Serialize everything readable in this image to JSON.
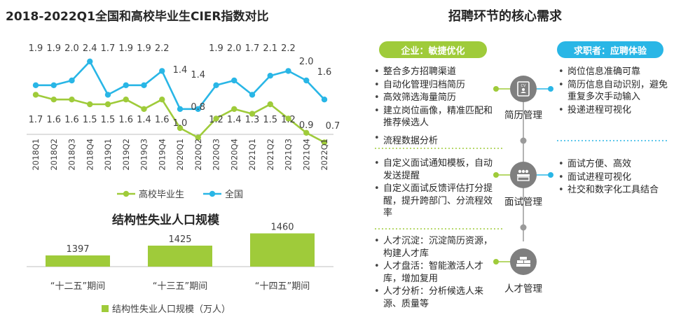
{
  "chart_data": [
    {
      "type": "line",
      "title": "2018-2022Q1全国和高校毕业生CIER指数对比",
      "categories": [
        "2018Q1",
        "2018Q2",
        "2018Q3",
        "2018Q4",
        "2019Q1",
        "2019Q2",
        "2019Q3",
        "2019Q4",
        "2020Q1",
        "2020Q2",
        "2020Q3",
        "2020Q4",
        "2021Q1",
        "2021Q2",
        "2021Q3",
        "2021Q4",
        "2022Q1"
      ],
      "series": [
        {
          "name": "全国",
          "color": "#29b6e6",
          "values": [
            1.9,
            1.9,
            2.0,
            2.4,
            1.7,
            1.9,
            1.9,
            2.2,
            1.4,
            1.4,
            1.9,
            2.0,
            1.7,
            2.1,
            2.2,
            2.0,
            1.6
          ]
        },
        {
          "name": "高校毕业生",
          "color": "#9fcb3a",
          "values": [
            1.7,
            1.6,
            1.6,
            1.5,
            1.5,
            1.6,
            1.4,
            1.6,
            1.0,
            0.8,
            1.2,
            1.4,
            1.3,
            1.5,
            1.2,
            0.9,
            0.7
          ]
        }
      ],
      "legend": "bottom",
      "grid": false
    },
    {
      "type": "bar",
      "title": "结构性失业人口规模",
      "categories": [
        "“十二五”期间",
        "“十三五”期间",
        "“十四五”期间"
      ],
      "series": [
        {
          "name": "结构性失业人口规模（万人）",
          "color": "#9fcb3a",
          "values": [
            1397,
            1425,
            1460
          ]
        }
      ],
      "legend": "bottom",
      "grid": false
    }
  ],
  "right": {
    "title": "招聘环节的核心需求",
    "pill_enterprise": "企业：敏捷优化",
    "pill_seeker": "求职者：应聘体验",
    "colors": {
      "enterprise": "#9fcb3a",
      "seeker": "#29b6e6",
      "node": "#7f7f7f"
    },
    "stages": [
      {
        "label": "简历管理",
        "icon": "resume-icon"
      },
      {
        "label": "面试管理",
        "icon": "interview-icon"
      },
      {
        "label": "人才管理",
        "icon": "talent-icon"
      }
    ],
    "enterprise_resume": [
      "整合多方招聘渠道",
      "自动化管理归档简历",
      "高效筛选海量简历",
      "建立岗位画像，精准匹配和推荐候选人"
    ],
    "middle_item": "流程数据分析",
    "enterprise_interview": [
      "自定义面试通知模板，自动发送提醒",
      "自定义面试反馈评估打分提醒，提升跨部门、分流程效率"
    ],
    "enterprise_talent": [
      "人才沉淀：沉淀简历资源，构建人才库",
      "人才盘活：智能激活人才库，增加复用",
      "人才分析：分析候选人来源、质量等"
    ],
    "seeker_resume": [
      "岗位信息准确可靠",
      "简历信息自动识别，避免重复多次手动输入",
      "投递进程可视化"
    ],
    "seeker_interview": [
      "面试方便、高效",
      "面试进程可视化",
      "社交和数字化工具结合"
    ]
  }
}
